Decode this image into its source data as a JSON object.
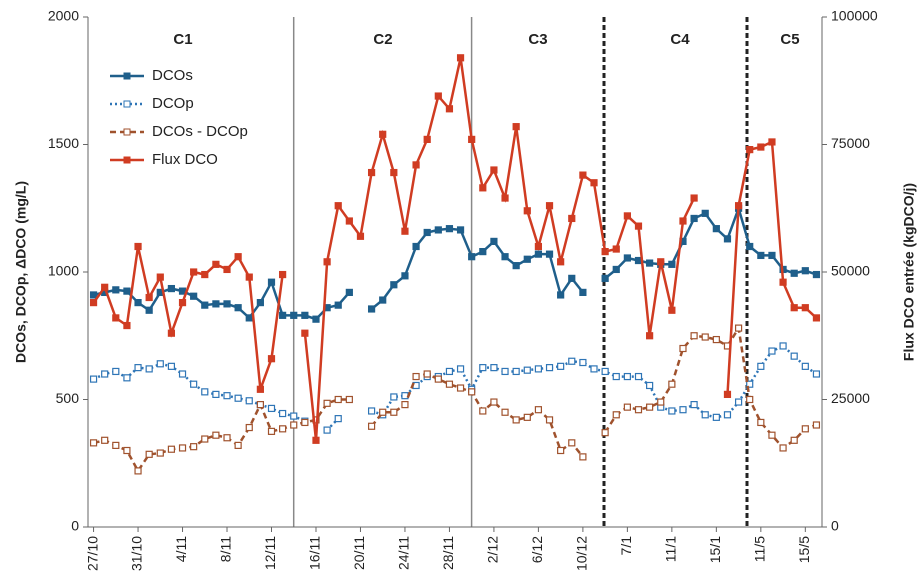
{
  "chart_data": {
    "type": "line",
    "y_label": "DCOs, DCOp, ΔDCO (mg/L)",
    "y2_label": "Flux DCO entrée (kgDCO/j)",
    "annotations": [
      "C1",
      "C2",
      "C3",
      "C4",
      "C5"
    ],
    "categories": [
      "27/10",
      null,
      null,
      null,
      "31/10",
      null,
      null,
      null,
      "4/11",
      null,
      null,
      null,
      "8/11",
      null,
      null,
      null,
      "12/11",
      null,
      null,
      null,
      "16/11",
      null,
      null,
      null,
      "20/11",
      null,
      null,
      null,
      "24/11",
      null,
      null,
      null,
      "28/11",
      null,
      null,
      null,
      "2/12",
      null,
      null,
      null,
      "6/12",
      null,
      null,
      null,
      "10/12",
      null,
      null,
      null,
      "7/1",
      null,
      null,
      null,
      "11/1",
      null,
      null,
      null,
      "15/1",
      null,
      null,
      null,
      "11/5",
      null,
      null,
      null,
      "15/5",
      null
    ],
    "ylim": [
      0,
      2000
    ],
    "yticks": [
      0,
      500,
      1000,
      1500,
      2000
    ],
    "y2lim": [
      0,
      100000
    ],
    "y2ticks": [
      0,
      25000,
      50000,
      75000,
      100000
    ],
    "grid": false,
    "legend": "upper left",
    "series": [
      {
        "name": "DCOs",
        "color": "#1f5f8b",
        "dash": "solid",
        "marker_hollow": false,
        "values": [
          910,
          920,
          930,
          925,
          880,
          850,
          920,
          935,
          925,
          905,
          870,
          875,
          875,
          860,
          820,
          880,
          960,
          830,
          830,
          830,
          815,
          860,
          870,
          920,
          null,
          855,
          890,
          950,
          985,
          1100,
          1155,
          1165,
          1170,
          1165,
          1060,
          1080,
          1120,
          1060,
          1025,
          1050,
          1070,
          1070,
          910,
          975,
          920,
          null,
          975,
          1010,
          1055,
          1045,
          1035,
          1030,
          1030,
          1120,
          1210,
          1230,
          1170,
          1130,
          1250,
          1100,
          1065,
          1065,
          1010,
          995,
          1005,
          990
        ]
      },
      {
        "name": "DCOp",
        "color": "#2e75b6",
        "dash": "dotted",
        "marker_hollow": true,
        "values": [
          580,
          600,
          610,
          585,
          625,
          620,
          640,
          630,
          600,
          560,
          530,
          520,
          515,
          505,
          495,
          480,
          465,
          445,
          435,
          415,
          null,
          380,
          425,
          null,
          null,
          455,
          440,
          510,
          515,
          555,
          590,
          590,
          610,
          620,
          540,
          625,
          625,
          610,
          610,
          615,
          620,
          625,
          630,
          650,
          645,
          620,
          610,
          590,
          590,
          590,
          555,
          470,
          455,
          460,
          480,
          440,
          430,
          440,
          490,
          560,
          630,
          690,
          710,
          670,
          630,
          600
        ]
      },
      {
        "name": "DCOs - DCOp",
        "color": "#a0522d",
        "dash": "dashed",
        "marker_hollow": true,
        "values": [
          330,
          340,
          320,
          300,
          220,
          285,
          290,
          305,
          310,
          315,
          345,
          360,
          350,
          320,
          390,
          480,
          375,
          385,
          400,
          410,
          420,
          485,
          500,
          500,
          null,
          395,
          450,
          450,
          480,
          590,
          600,
          580,
          560,
          545,
          530,
          455,
          490,
          450,
          420,
          430,
          460,
          420,
          300,
          330,
          275,
          null,
          370,
          440,
          470,
          460,
          470,
          490,
          560,
          700,
          750,
          745,
          735,
          710,
          780,
          500,
          410,
          360,
          310,
          340,
          385,
          400
        ]
      },
      {
        "name": "Flux DCO",
        "color": "#d03c22",
        "dash": "solid",
        "marker_hollow": false,
        "axis": "y2",
        "values": [
          44000,
          47000,
          41000,
          39500,
          55000,
          45000,
          49000,
          38000,
          44000,
          50000,
          49500,
          51500,
          50500,
          53000,
          49000,
          27000,
          33000,
          49500,
          null,
          38000,
          17000,
          52000,
          63000,
          60000,
          57000,
          69500,
          77000,
          69500,
          58000,
          71000,
          76000,
          84500,
          82000,
          92000,
          76000,
          66500,
          70000,
          64500,
          78500,
          62000,
          55000,
          63000,
          52000,
          60500,
          69000,
          67500,
          54000,
          54500,
          61000,
          59000,
          37500,
          52000,
          42500,
          60000,
          64500,
          null,
          null,
          26000,
          63000,
          74000,
          74500,
          75500,
          48000,
          43000,
          43000,
          41000
        ]
      }
    ]
  }
}
